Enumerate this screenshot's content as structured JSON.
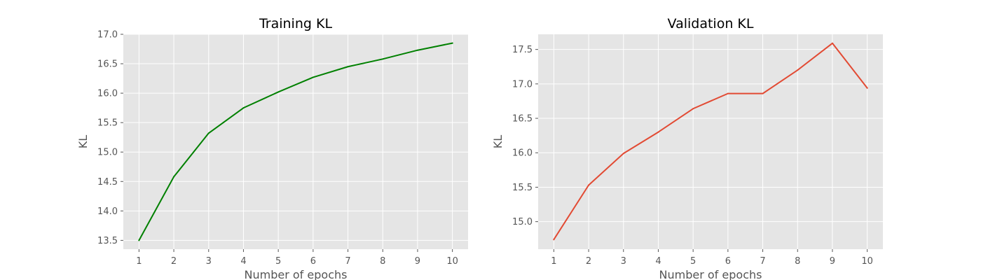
{
  "chart_data": [
    {
      "type": "line",
      "title": "Training KL",
      "xlabel": "Number of epochs",
      "ylabel": "KL",
      "x": [
        1,
        2,
        3,
        4,
        5,
        6,
        7,
        8,
        9,
        10
      ],
      "xticks": [
        1,
        2,
        3,
        4,
        5,
        6,
        7,
        8,
        9,
        10
      ],
      "xlim": [
        0.55,
        10.45
      ],
      "ylim": [
        13.35,
        17.0
      ],
      "yticks": [
        13.5,
        14.0,
        14.5,
        15.0,
        15.5,
        16.0,
        16.5,
        17.0
      ],
      "grid": true,
      "style": "ggplot",
      "series": [
        {
          "values": [
            13.5,
            14.58,
            15.32,
            15.75,
            16.02,
            16.27,
            16.45,
            16.58,
            16.73,
            16.85
          ],
          "color": "#008000"
        }
      ]
    },
    {
      "type": "line",
      "title": "Validation KL",
      "xlabel": "Number of epochs",
      "ylabel": "KL",
      "x": [
        1,
        2,
        3,
        4,
        5,
        6,
        7,
        8,
        9,
        10
      ],
      "xticks": [
        1,
        2,
        3,
        4,
        5,
        6,
        7,
        8,
        9,
        10
      ],
      "xlim": [
        0.55,
        10.45
      ],
      "ylim": [
        14.6,
        17.72
      ],
      "yticks": [
        15.0,
        15.5,
        16.0,
        16.5,
        17.0,
        17.5
      ],
      "grid": true,
      "style": "ggplot",
      "series": [
        {
          "values": [
            14.74,
            15.53,
            15.99,
            16.3,
            16.64,
            16.86,
            16.86,
            17.2,
            17.59,
            16.94
          ],
          "color": "#E24A33"
        }
      ]
    }
  ]
}
